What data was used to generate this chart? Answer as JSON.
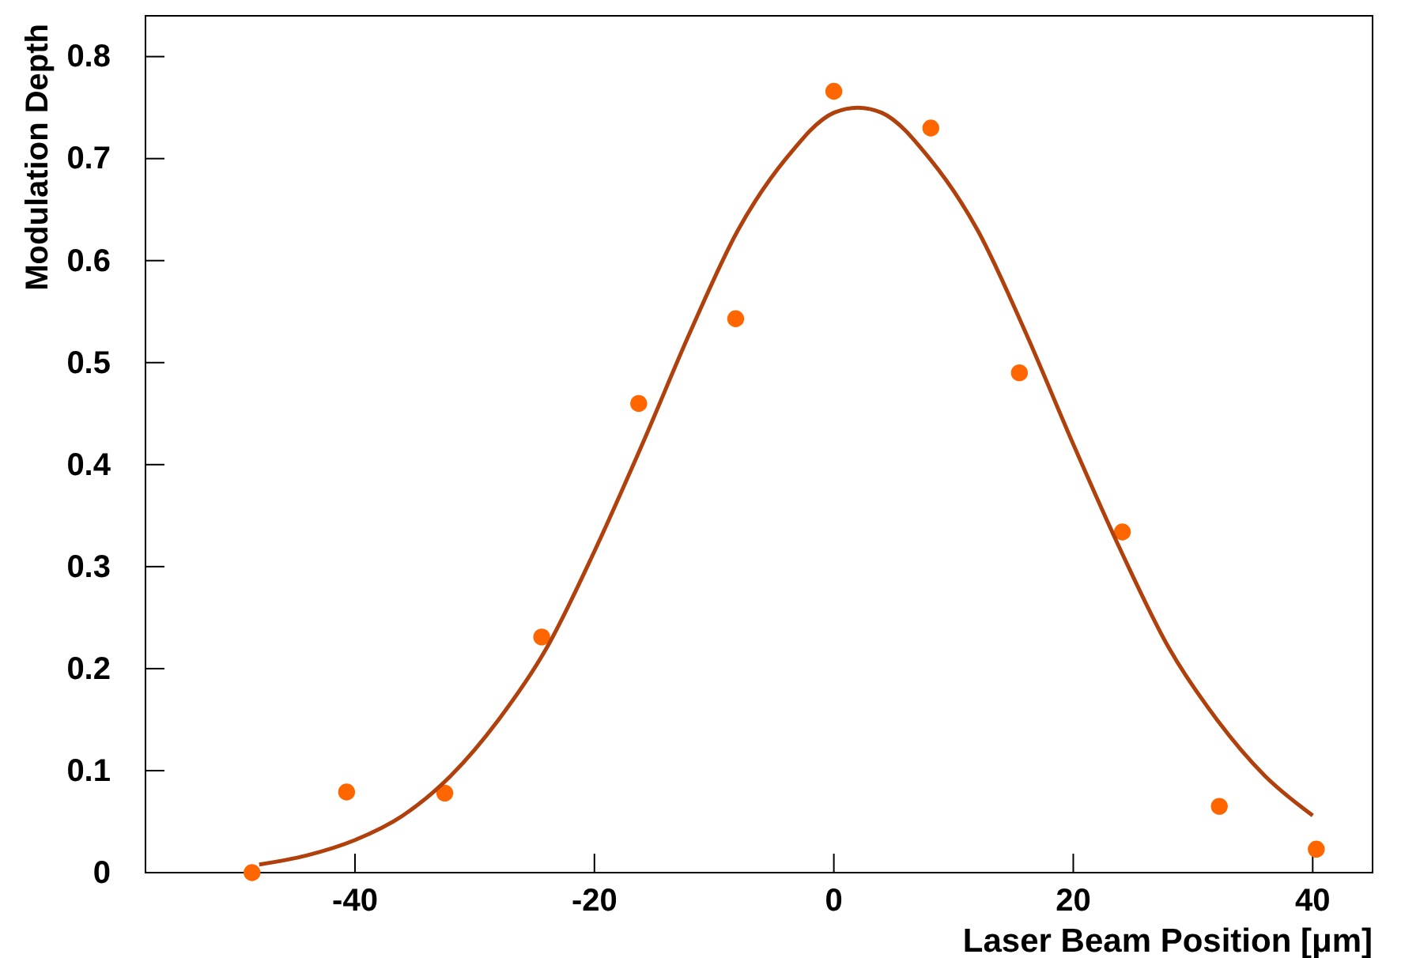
{
  "chart_data": {
    "type": "scatter",
    "xlabel": "Laser Beam Position [μm]",
    "ylabel": "Modulation Depth",
    "xlim": [
      -57.5,
      45
    ],
    "ylim": [
      0,
      0.84
    ],
    "xticks": [
      -40,
      -20,
      0,
      20,
      40
    ],
    "yticks": [
      0,
      0.1,
      0.2,
      0.3,
      0.4,
      0.5,
      0.6,
      0.7,
      0.8
    ],
    "grid": false,
    "marker": "circle",
    "series": [
      {
        "color": "#ff6600",
        "x": [
          -48.6,
          -40.7,
          -32.5,
          -24.4,
          -16.3,
          -8.2,
          0,
          8.1,
          15.5,
          24.1,
          32.2,
          40.3
        ],
        "values": [
          0.0,
          0.079,
          0.078,
          0.231,
          0.46,
          0.543,
          0.766,
          0.73,
          0.49,
          0.334,
          0.065,
          0.023
        ]
      },
      {
        "type": "line",
        "color": "#b0400c",
        "marker": "none",
        "x": [
          -48,
          -44,
          -40,
          -36,
          -32,
          -28,
          -24,
          -20,
          -16,
          -12,
          -8,
          -4,
          0,
          2,
          4,
          8,
          12,
          16,
          20,
          24,
          28,
          32,
          36,
          40
        ],
        "values": [
          0.008,
          0.017,
          0.032,
          0.056,
          0.095,
          0.15,
          0.22,
          0.315,
          0.42,
          0.53,
          0.63,
          0.7,
          0.745,
          0.75,
          0.745,
          0.7,
          0.63,
          0.53,
          0.42,
          0.315,
          0.22,
          0.15,
          0.095,
          0.056
        ]
      }
    ]
  }
}
